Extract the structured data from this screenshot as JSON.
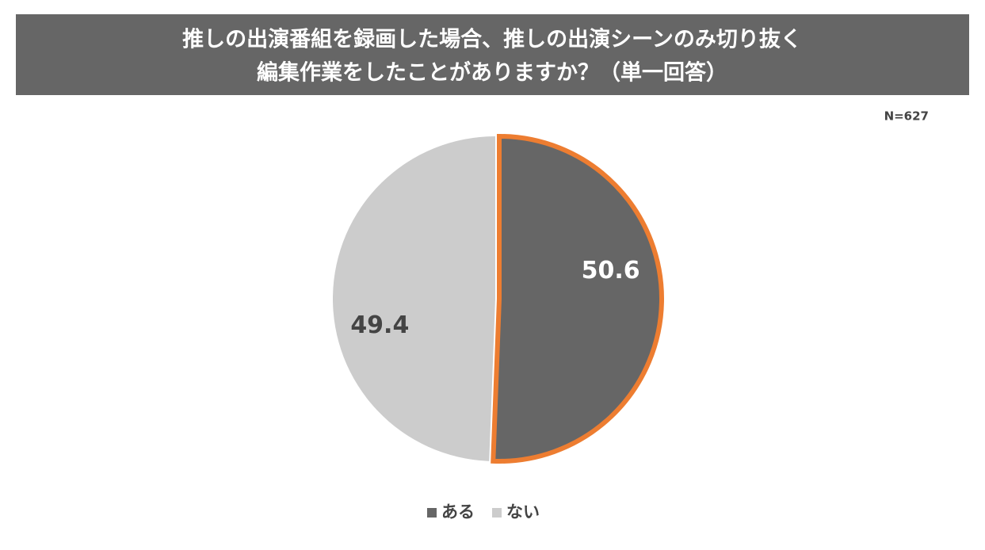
{
  "chart_data": {
    "type": "pie",
    "title": [
      "推しの出演番組を録画した場合、推しの出演シーンのみ切り抜く",
      "編集作業をしたことがありますか？（単一回答）"
    ],
    "note": "N=627",
    "categories": [
      "ある",
      "ない"
    ],
    "values": [
      50.6,
      49.4
    ],
    "colors": [
      "#666666",
      "#cccccc"
    ],
    "label_colors": [
      "#ffffff",
      "#444444"
    ],
    "outline": {
      "index": 0,
      "color": "#ed7d31"
    },
    "legend": "bottom"
  }
}
